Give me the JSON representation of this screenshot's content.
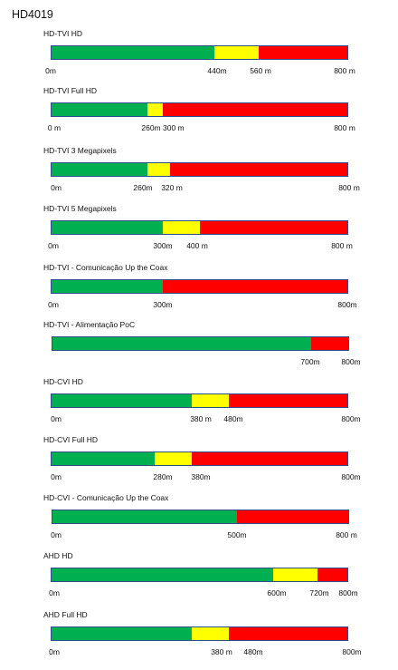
{
  "title": "HD4019",
  "colors": {
    "green": "#00b050",
    "yellow": "#ffff00",
    "red": "#ff0000",
    "border": "#2f4d8a"
  },
  "chart_data": [
    {
      "type": "bar",
      "title": "HD-TVI HD",
      "xlim": [
        0,
        800
      ],
      "segments": [
        {
          "color": "green",
          "from": 0,
          "to": 440
        },
        {
          "color": "yellow",
          "from": 440,
          "to": 560
        },
        {
          "color": "red",
          "from": 560,
          "to": 800
        }
      ],
      "tick_labels": [
        "0m",
        "440m",
        "560 m",
        "800 m"
      ]
    },
    {
      "type": "bar",
      "title": "HD-TVI Full HD",
      "xlim": [
        0,
        800
      ],
      "segments": [
        {
          "color": "green",
          "from": 0,
          "to": 260
        },
        {
          "color": "yellow",
          "from": 260,
          "to": 300
        },
        {
          "color": "red",
          "from": 300,
          "to": 800
        }
      ],
      "tick_labels": [
        "0 m",
        "260m 300 m",
        "800 m"
      ]
    },
    {
      "type": "bar",
      "title": "HD-TVI 3 Megapixels",
      "xlim": [
        0,
        800
      ],
      "segments": [
        {
          "color": "green",
          "from": 0,
          "to": 260
        },
        {
          "color": "yellow",
          "from": 260,
          "to": 320
        },
        {
          "color": "red",
          "from": 320,
          "to": 800
        }
      ],
      "tick_labels": [
        "0m",
        "260m",
        "320 m",
        "800 m"
      ]
    },
    {
      "type": "bar",
      "title": "HD-TVI 5 Megapixels",
      "xlim": [
        0,
        800
      ],
      "segments": [
        {
          "color": "green",
          "from": 0,
          "to": 300
        },
        {
          "color": "yellow",
          "from": 300,
          "to": 400
        },
        {
          "color": "red",
          "from": 400,
          "to": 800
        }
      ],
      "tick_labels": [
        "0m",
        "300m",
        "400 m",
        "800 m"
      ]
    },
    {
      "type": "bar",
      "title": "HD-TVI - Comunicação Up the Coax",
      "xlim": [
        0,
        800
      ],
      "segments": [
        {
          "color": "green",
          "from": 0,
          "to": 300
        },
        {
          "color": "red",
          "from": 300,
          "to": 800
        }
      ],
      "tick_labels": [
        "0m",
        "300m",
        "800m"
      ]
    },
    {
      "type": "bar",
      "title": "HD-TVI - Alimentação PoC",
      "xlim": [
        0,
        800
      ],
      "segments": [
        {
          "color": "green",
          "from": 0,
          "to": 700
        },
        {
          "color": "red",
          "from": 700,
          "to": 800
        }
      ],
      "tick_labels": [
        "700m",
        "800m"
      ]
    },
    {
      "type": "bar",
      "title": "HD-CVI HD",
      "xlim": [
        0,
        800
      ],
      "segments": [
        {
          "color": "green",
          "from": 0,
          "to": 380
        },
        {
          "color": "yellow",
          "from": 380,
          "to": 480
        },
        {
          "color": "red",
          "from": 480,
          "to": 800
        }
      ],
      "tick_labels": [
        "0m",
        "380 m",
        "480m",
        "800m"
      ]
    },
    {
      "type": "bar",
      "title": "HD-CVI  Full HD",
      "xlim": [
        0,
        800
      ],
      "segments": [
        {
          "color": "green",
          "from": 0,
          "to": 280
        },
        {
          "color": "yellow",
          "from": 280,
          "to": 380
        },
        {
          "color": "red",
          "from": 380,
          "to": 800
        }
      ],
      "tick_labels": [
        "0m",
        "280m",
        "380m",
        "800m"
      ]
    },
    {
      "type": "bar",
      "title": "HD-CVI - Comunicação Up the Coax",
      "xlim": [
        0,
        800
      ],
      "segments": [
        {
          "color": "green",
          "from": 0,
          "to": 500
        },
        {
          "color": "red",
          "from": 500,
          "to": 800
        }
      ],
      "tick_labels": [
        "0m",
        "500m",
        "800 m"
      ]
    },
    {
      "type": "bar",
      "title": "AHD HD",
      "xlim": [
        0,
        800
      ],
      "segments": [
        {
          "color": "green",
          "from": 0,
          "to": 600
        },
        {
          "color": "yellow",
          "from": 600,
          "to": 720
        },
        {
          "color": "red",
          "from": 720,
          "to": 800
        }
      ],
      "tick_labels": [
        "0m",
        "600m",
        "720m",
        "800m"
      ]
    },
    {
      "type": "bar",
      "title": "AHD Full HD",
      "xlim": [
        0,
        800
      ],
      "segments": [
        {
          "color": "green",
          "from": 0,
          "to": 380
        },
        {
          "color": "yellow",
          "from": 380,
          "to": 480
        },
        {
          "color": "red",
          "from": 480,
          "to": 800
        }
      ],
      "tick_labels": [
        "0m",
        "380 m",
        "480m",
        "800m"
      ]
    }
  ]
}
